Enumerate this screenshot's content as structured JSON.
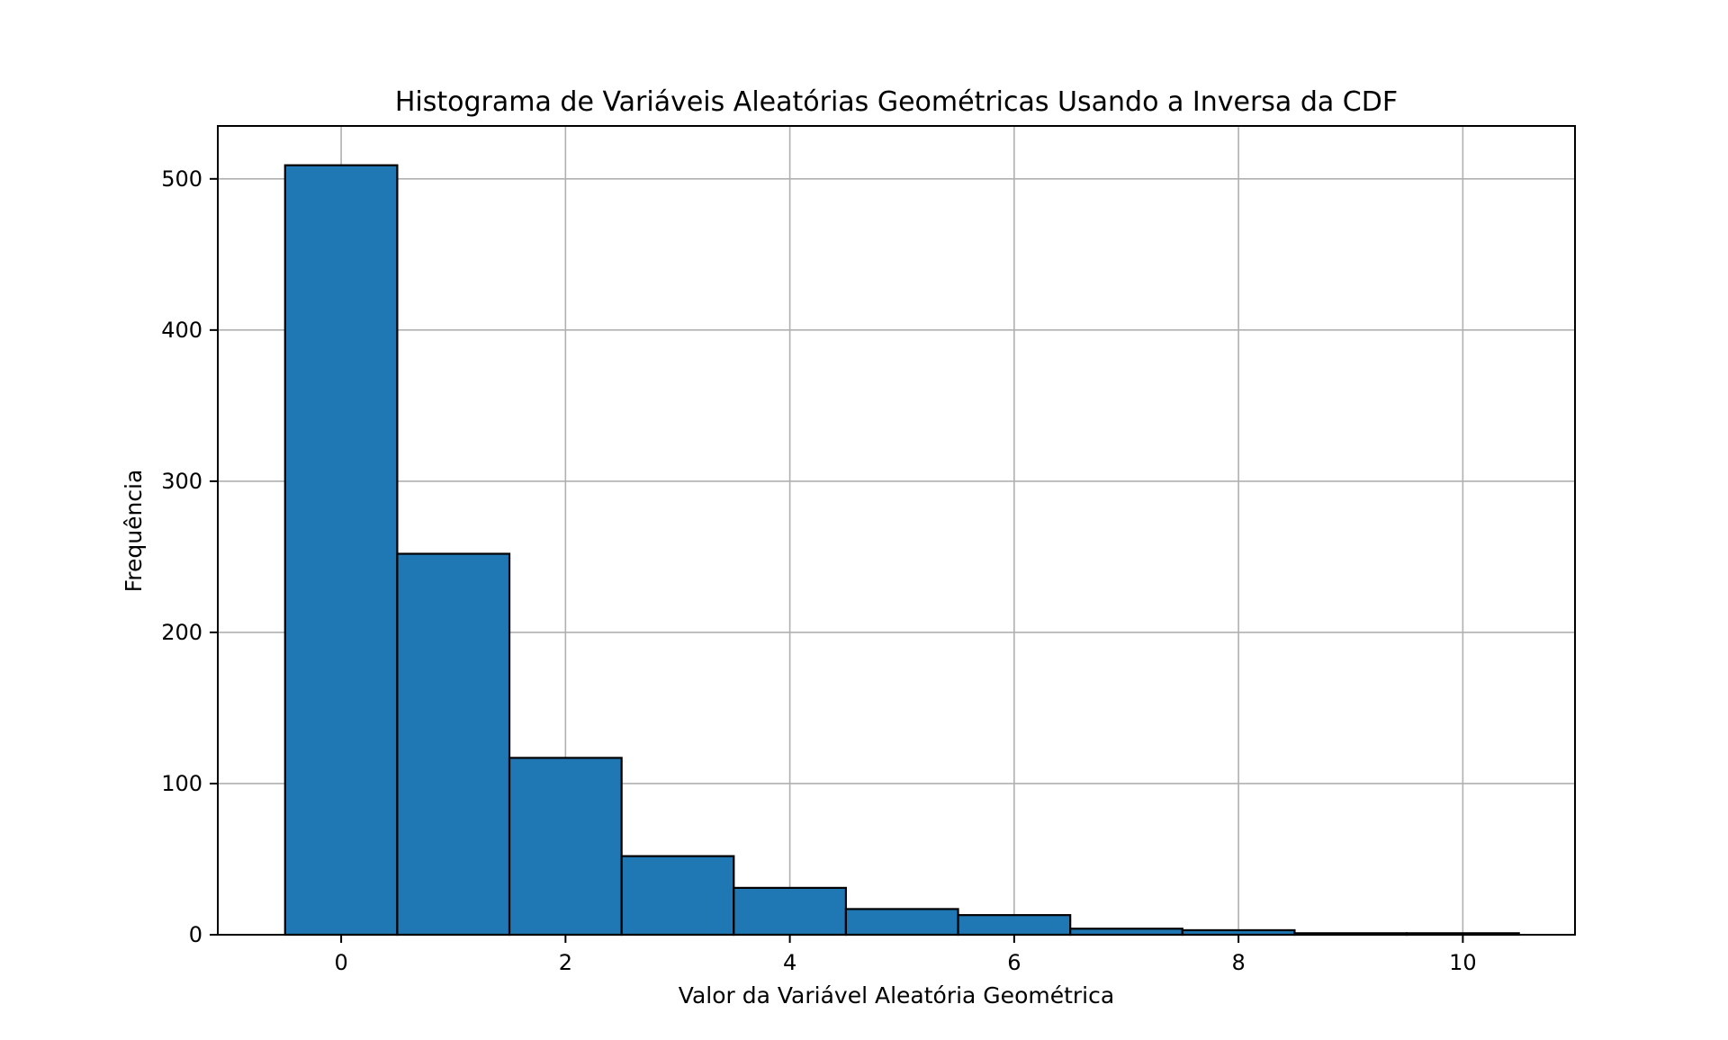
{
  "chart_data": {
    "type": "bar",
    "subtype": "histogram",
    "title": "Histograma de Variáveis Aleatórias Geométricas Usando a Inversa da CDF",
    "xlabel": "Valor da Variável Aleatória Geométrica",
    "ylabel": "Frequência",
    "bin_width": 1,
    "x": [
      0,
      1,
      2,
      3,
      4,
      5,
      6,
      7,
      8,
      9,
      10
    ],
    "values": [
      509,
      252,
      117,
      52,
      31,
      17,
      13,
      4,
      3,
      1,
      1
    ],
    "xlim": [
      -1.1,
      11.0
    ],
    "ylim": [
      0,
      535
    ],
    "x_ticks": [
      0,
      2,
      4,
      6,
      8,
      10
    ],
    "x_tick_labels": [
      "0",
      "2",
      "4",
      "6",
      "8",
      "10"
    ],
    "y_ticks": [
      0,
      100,
      200,
      300,
      400,
      500
    ],
    "y_tick_labels": [
      "0",
      "100",
      "200",
      "300",
      "400",
      "500"
    ],
    "grid": true,
    "legend": "none",
    "colors": {
      "bar_fill": "#1f77b4",
      "bar_edge": "#000000",
      "grid": "#b0b0b0",
      "axes": "#000000"
    }
  }
}
